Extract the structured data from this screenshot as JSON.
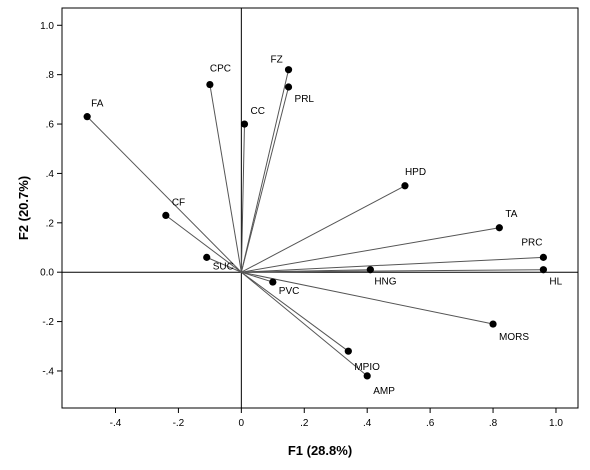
{
  "chart_data": {
    "type": "scatter",
    "title": "",
    "xlabel": "F1 (28.8%)",
    "ylabel": "F2 (20.7%)",
    "xlim": [
      -0.57,
      1.07
    ],
    "ylim": [
      -0.55,
      1.07
    ],
    "grid": false,
    "legend": "none",
    "x_ticks": [
      {
        "value": -0.4,
        "label": "-.4"
      },
      {
        "value": -0.2,
        "label": "-.2"
      },
      {
        "value": 0.0,
        "label": "0"
      },
      {
        "value": 0.2,
        "label": ".2"
      },
      {
        "value": 0.4,
        "label": ".4"
      },
      {
        "value": 0.6,
        "label": ".6"
      },
      {
        "value": 0.8,
        "label": ".8"
      },
      {
        "value": 1.0,
        "label": "1.0"
      }
    ],
    "y_ticks": [
      {
        "value": 1.0,
        "label": "1.0"
      },
      {
        "value": 0.8,
        "label": ".8"
      },
      {
        "value": 0.6,
        "label": ".6"
      },
      {
        "value": 0.4,
        "label": ".4"
      },
      {
        "value": 0.2,
        "label": ".2"
      },
      {
        "value": 0.0,
        "label": "0.0"
      },
      {
        "value": -0.2,
        "label": "-.2"
      },
      {
        "value": -0.4,
        "label": "-.4"
      }
    ],
    "vectors_from_origin": true,
    "points": [
      {
        "label": "FA",
        "x": -0.49,
        "y": 0.63
      },
      {
        "label": "CPC",
        "x": -0.1,
        "y": 0.76
      },
      {
        "label": "FZ",
        "x": 0.15,
        "y": 0.82
      },
      {
        "label": "PRL",
        "x": 0.15,
        "y": 0.75
      },
      {
        "label": "CC",
        "x": 0.01,
        "y": 0.6
      },
      {
        "label": "CF",
        "x": -0.24,
        "y": 0.23
      },
      {
        "label": "SUC",
        "x": -0.11,
        "y": 0.06
      },
      {
        "label": "HPD",
        "x": 0.52,
        "y": 0.35
      },
      {
        "label": "TA",
        "x": 0.82,
        "y": 0.18
      },
      {
        "label": "PRC",
        "x": 0.96,
        "y": 0.06
      },
      {
        "label": "HL",
        "x": 0.96,
        "y": 0.01
      },
      {
        "label": "HNG",
        "x": 0.41,
        "y": 0.01
      },
      {
        "label": "PVC",
        "x": 0.1,
        "y": -0.04
      },
      {
        "label": "MORS",
        "x": 0.8,
        "y": -0.21
      },
      {
        "label": "MPIO",
        "x": 0.34,
        "y": -0.32
      },
      {
        "label": "AMP",
        "x": 0.4,
        "y": -0.42
      }
    ]
  }
}
